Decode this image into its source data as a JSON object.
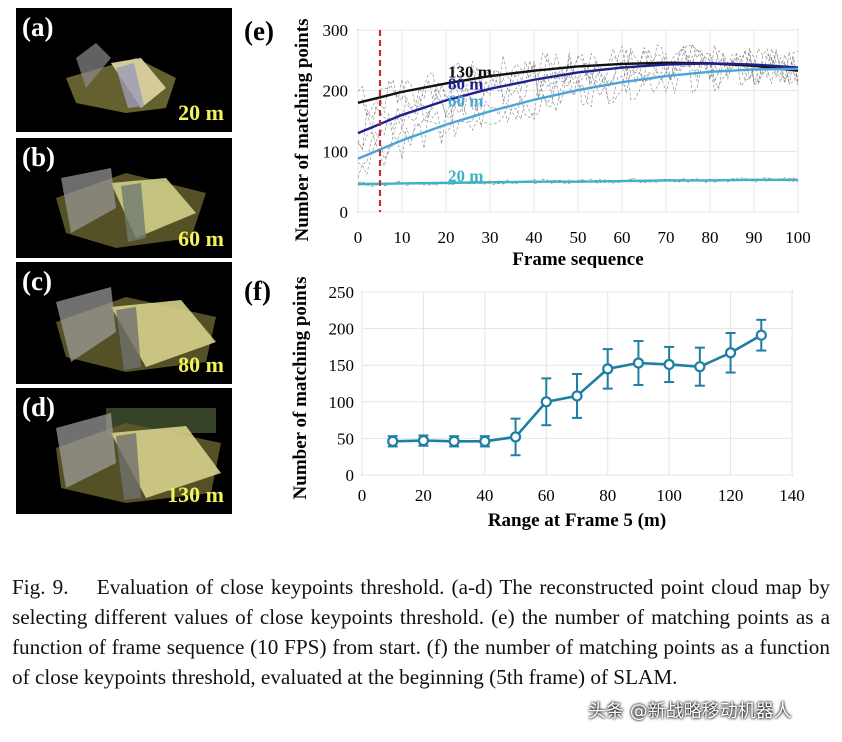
{
  "panels": [
    {
      "letter": "(a)",
      "range": "20 m"
    },
    {
      "letter": "(b)",
      "range": "60 m"
    },
    {
      "letter": "(c)",
      "range": "80 m"
    },
    {
      "letter": "(d)",
      "range": "130 m"
    }
  ],
  "colors": {
    "c130": "#111111",
    "c80": "#1f1f8f",
    "c60": "#4aa6d6",
    "c20": "#3db3c4",
    "f_line": "#1d7fa3",
    "marker": "#c0303a"
  },
  "chart_data": [
    {
      "panel_label": "(e)",
      "type": "line",
      "xlabel": "Frame sequence",
      "ylabel": "Number of matching points",
      "xlim": [
        0,
        100
      ],
      "ylim": [
        0,
        300
      ],
      "xticks": [
        0,
        10,
        20,
        30,
        40,
        50,
        60,
        70,
        80,
        90,
        100
      ],
      "yticks": [
        0,
        100,
        200,
        300
      ],
      "vertical_marker_x": 5,
      "series": [
        {
          "name": "130 m",
          "x": [
            0,
            10,
            20,
            30,
            40,
            50,
            60,
            70,
            80,
            90,
            100
          ],
          "y": [
            180,
            198,
            212,
            224,
            233,
            240,
            244,
            246,
            245,
            241,
            233
          ]
        },
        {
          "name": "80 m",
          "x": [
            0,
            10,
            20,
            30,
            40,
            50,
            60,
            70,
            80,
            90,
            100
          ],
          "y": [
            130,
            160,
            184,
            203,
            218,
            230,
            238,
            243,
            245,
            243,
            238
          ]
        },
        {
          "name": "60 m",
          "x": [
            0,
            10,
            20,
            30,
            40,
            50,
            60,
            70,
            80,
            90,
            100
          ],
          "y": [
            88,
            118,
            144,
            166,
            185,
            201,
            214,
            224,
            231,
            235,
            236
          ]
        },
        {
          "name": "20 m",
          "x": [
            0,
            10,
            20,
            30,
            40,
            50,
            60,
            70,
            80,
            90,
            100
          ],
          "y": [
            46,
            47,
            48,
            49,
            50,
            50,
            51,
            52,
            52,
            53,
            53
          ]
        }
      ]
    },
    {
      "panel_label": "(f)",
      "type": "line",
      "xlabel": "Range at Frame 5 (m)",
      "ylabel": "Number of matching points",
      "xlim": [
        0,
        140
      ],
      "ylim": [
        0,
        250
      ],
      "xticks": [
        0,
        20,
        40,
        60,
        80,
        100,
        120,
        140
      ],
      "yticks": [
        0,
        50,
        100,
        150,
        200,
        250
      ],
      "series": [
        {
          "name": "matching points",
          "x": [
            10,
            20,
            30,
            40,
            50,
            60,
            70,
            80,
            90,
            100,
            110,
            120,
            130
          ],
          "y": [
            46,
            47,
            46,
            46,
            52,
            100,
            108,
            145,
            153,
            151,
            148,
            167,
            191
          ],
          "err": [
            7,
            7,
            7,
            7,
            25,
            32,
            30,
            27,
            30,
            24,
            26,
            27,
            21
          ]
        }
      ]
    }
  ],
  "caption": {
    "label": "Fig. 9.",
    "text": "Evaluation of close keypoints threshold. (a-d) The reconstructed point cloud map by selecting different values of close keypoints threshold. (e) the number of matching points as a function of frame sequence (10 FPS) from start. (f) the number of matching points as a function of close keypoints threshold, evaluated at the beginning (5th frame) of SLAM."
  },
  "watermark": "头条 @新战略移动机器人"
}
